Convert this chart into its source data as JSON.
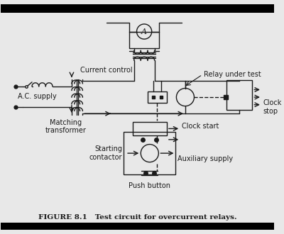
{
  "title": "FIGURE 8.1   Test circuit for overcurrent relays.",
  "bg_color": "#e8e8e8",
  "line_color": "#1a1a1a",
  "labels": {
    "current_control": "Current control",
    "ac_supply": "A.C. supply",
    "matching_transformer": "Matching\ntransformer",
    "relay_under_test": "Relay under test",
    "clock_stop": "Clock\nstop",
    "clock_start": "Clock start",
    "starting_contactor": "Starting\ncontactor",
    "auxiliary_supply": "Auxiliary supply",
    "push_button": "Push button"
  },
  "fig_width": 4.0,
  "fig_height": 3.3,
  "dpi": 100
}
